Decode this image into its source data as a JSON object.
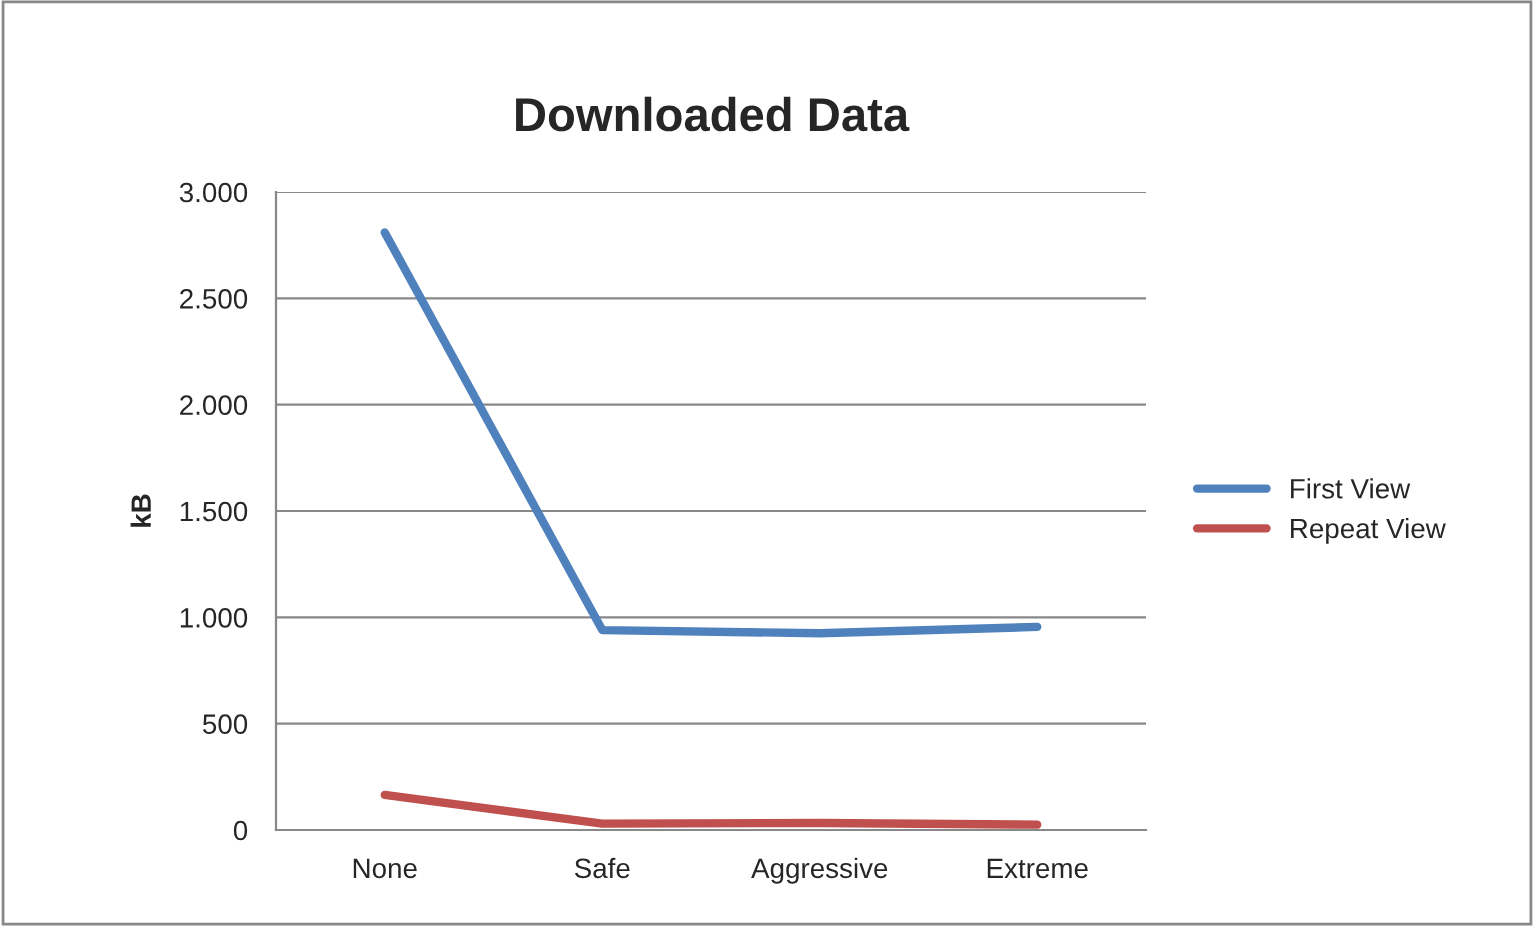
{
  "chart_data": {
    "type": "line",
    "title": "Downloaded Data",
    "ylabel": "kB",
    "categories": [
      "None",
      "Safe",
      "Aggressive",
      "Extreme"
    ],
    "series": [
      {
        "name": "First View",
        "color": "#4f81bd",
        "values": [
          2810,
          940,
          925,
          955
        ]
      },
      {
        "name": "Repeat View",
        "color": "#c0504d",
        "values": [
          165,
          30,
          33,
          25
        ]
      }
    ],
    "ylim": [
      0,
      3000
    ],
    "yticks": [
      {
        "value": 0,
        "label": "0"
      },
      {
        "value": 500,
        "label": "500"
      },
      {
        "value": 1000,
        "label": "1.000"
      },
      {
        "value": 1500,
        "label": "1.500"
      },
      {
        "value": 2000,
        "label": "2.000"
      },
      {
        "value": 2500,
        "label": "2.500"
      },
      {
        "value": 3000,
        "label": "3.000"
      }
    ],
    "grid": "y",
    "legend": "right",
    "marker": "none",
    "line_style": "solid"
  }
}
